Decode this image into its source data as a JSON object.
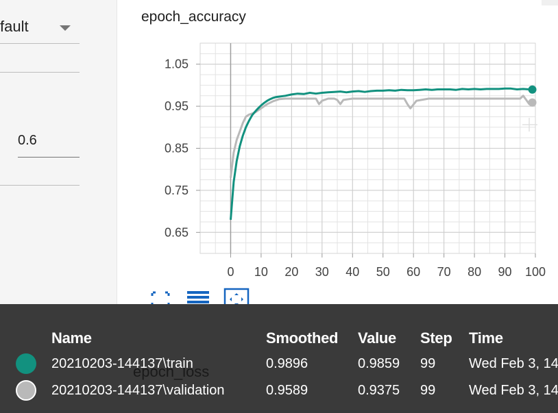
{
  "settings": {
    "dropdown_value": "fault",
    "smoothing_value": "0.6"
  },
  "chart": {
    "title": "epoch_accuracy"
  },
  "chart_data": {
    "type": "line",
    "title": "epoch_accuracy",
    "xlim": [
      -10,
      100
    ],
    "ylim": [
      0.6,
      1.1
    ],
    "x_ticks": [
      "0",
      "10",
      "20",
      "30",
      "40",
      "50",
      "60",
      "70",
      "80",
      "90",
      "100"
    ],
    "y_ticks": [
      "1.05",
      "0.95",
      "0.85",
      "0.75",
      "0.65"
    ],
    "series": [
      {
        "name": "20210203-144137\\train",
        "color": "#12917f",
        "x": [
          0,
          1,
          2,
          3,
          4,
          5,
          6,
          7,
          8,
          9,
          10,
          11,
          12,
          13,
          14,
          15,
          16,
          18,
          20,
          22,
          24,
          26,
          28,
          30,
          32,
          34,
          36,
          38,
          40,
          42,
          44,
          46,
          48,
          50,
          52,
          54,
          56,
          58,
          60,
          62,
          64,
          66,
          68,
          70,
          72,
          74,
          76,
          78,
          80,
          82,
          84,
          86,
          88,
          90,
          92,
          94,
          96,
          98,
          99
        ],
        "values": [
          0.68,
          0.77,
          0.82,
          0.855,
          0.88,
          0.9,
          0.915,
          0.928,
          0.937,
          0.945,
          0.952,
          0.958,
          0.963,
          0.967,
          0.97,
          0.972,
          0.973,
          0.975,
          0.978,
          0.98,
          0.979,
          0.982,
          0.98,
          0.982,
          0.983,
          0.984,
          0.985,
          0.983,
          0.985,
          0.986,
          0.984,
          0.986,
          0.987,
          0.987,
          0.988,
          0.987,
          0.989,
          0.988,
          0.988,
          0.989,
          0.99,
          0.989,
          0.99,
          0.99,
          0.99,
          0.989,
          0.991,
          0.99,
          0.991,
          0.99,
          0.991,
          0.991,
          0.991,
          0.992,
          0.992,
          0.99,
          0.991,
          0.99,
          0.9896
        ]
      },
      {
        "name": "20210203-144137\\validation",
        "color": "#b9b9b9",
        "x": [
          0,
          1,
          2,
          3,
          4,
          5,
          6,
          8,
          10,
          12,
          14,
          16,
          18,
          20,
          25,
          28,
          29,
          30,
          32,
          34,
          35,
          36,
          37,
          40,
          45,
          50,
          55,
          57,
          58,
          59,
          61,
          65,
          70,
          75,
          80,
          85,
          90,
          95,
          96,
          97,
          98,
          99
        ],
        "values": [
          0.78,
          0.84,
          0.87,
          0.89,
          0.91,
          0.925,
          0.93,
          0.935,
          0.945,
          0.955,
          0.962,
          0.967,
          0.968,
          0.968,
          0.968,
          0.968,
          0.955,
          0.963,
          0.968,
          0.968,
          0.965,
          0.955,
          0.965,
          0.968,
          0.968,
          0.968,
          0.968,
          0.968,
          0.955,
          0.945,
          0.963,
          0.968,
          0.968,
          0.968,
          0.968,
          0.968,
          0.968,
          0.968,
          0.975,
          0.965,
          0.955,
          0.9589
        ]
      }
    ]
  },
  "toolbar": {
    "icons": [
      "fullscreen-icon",
      "list-icon",
      "fit-domain-icon"
    ]
  },
  "next_chart": {
    "title": "epoch_loss"
  },
  "runs_table": {
    "headers": {
      "name": "Name",
      "smoothed": "Smoothed",
      "value": "Value",
      "step": "Step",
      "time": "Time"
    },
    "rows": [
      {
        "dot_color": "#12917f",
        "name": "20210203-144137\\train",
        "smoothed": "0.9896",
        "value": "0.9859",
        "step": "99",
        "time": "Wed Feb 3, 14"
      },
      {
        "dot_color": "#b9b9b9",
        "name": "20210203-144137\\validation",
        "smoothed": "0.9589",
        "value": "0.9375",
        "step": "99",
        "time": "Wed Feb 3, 14"
      }
    ]
  }
}
